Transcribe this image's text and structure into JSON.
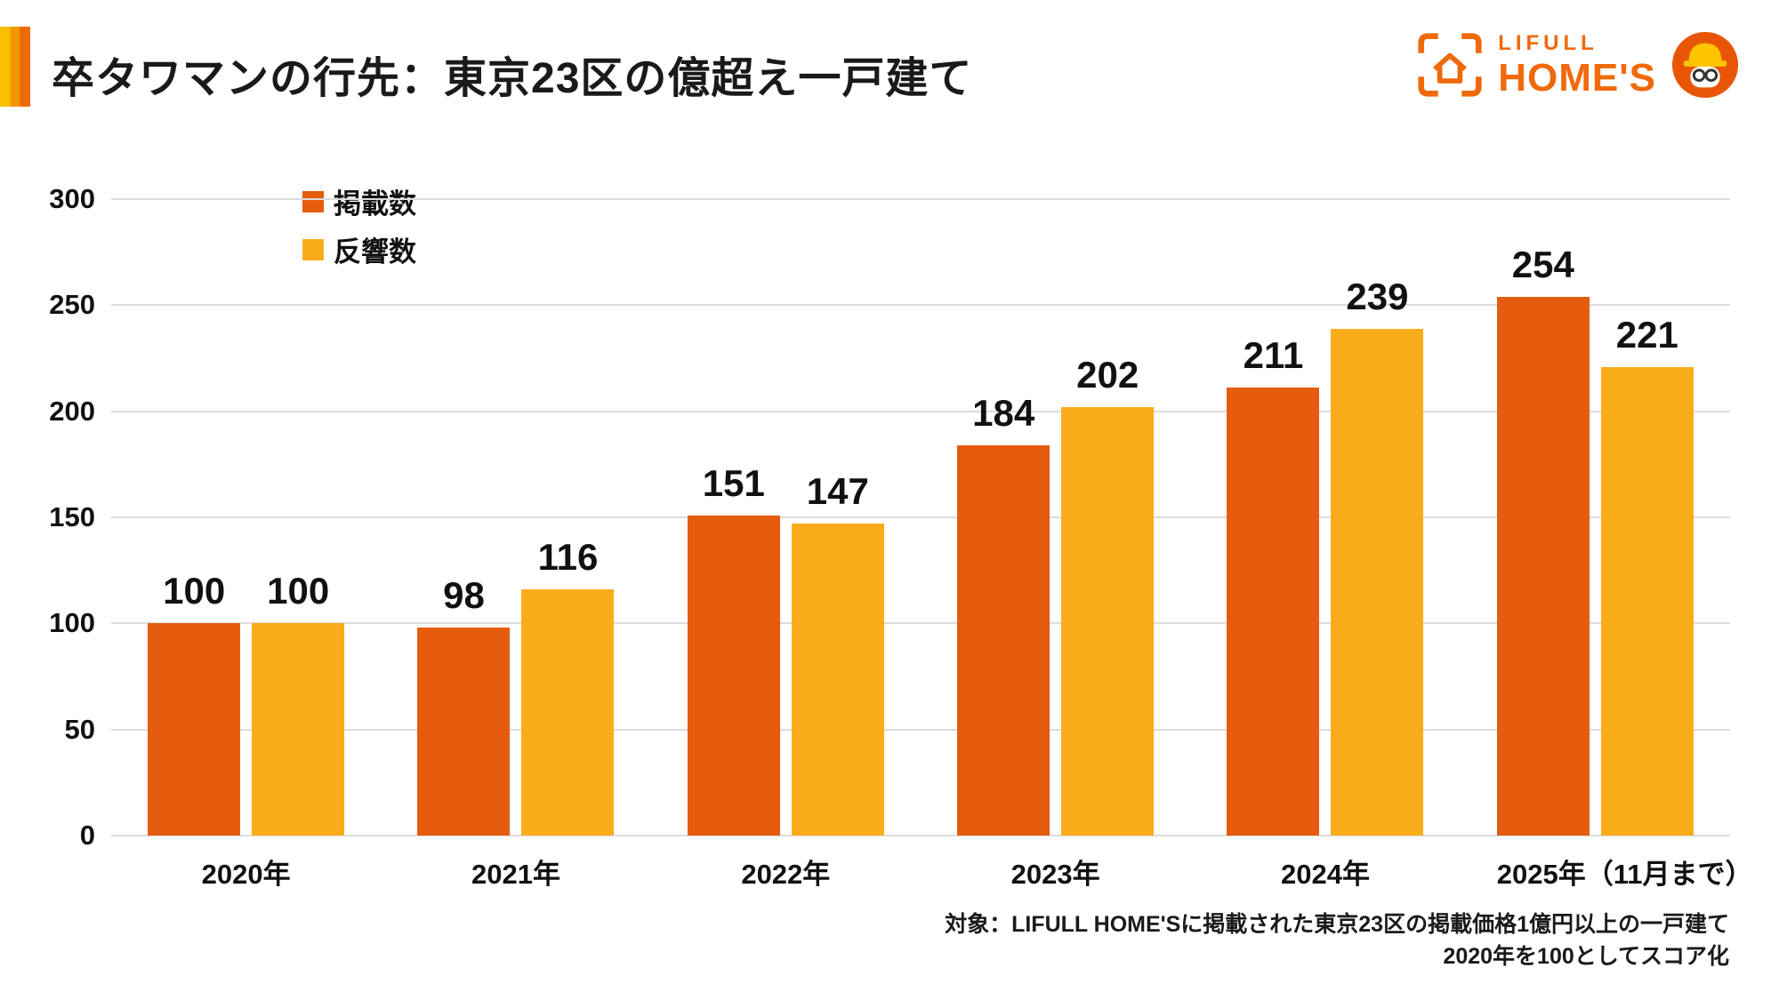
{
  "header": {
    "title": "卒タワマンの行先：東京23区の億超え一戸建て",
    "logo": {
      "brand_top": "LIFULL",
      "brand_bottom": "HOME'S"
    }
  },
  "chart_data": {
    "type": "bar",
    "title": "卒タワマンの行先：東京23区の億超え一戸建て",
    "categories": [
      "2020年",
      "2021年",
      "2022年",
      "2023年",
      "2024年",
      "2025年（11月まで）"
    ],
    "series": [
      {
        "name": "掲載数",
        "color": "#E65C0F",
        "values": [
          100,
          98,
          151,
          184,
          211,
          254
        ]
      },
      {
        "name": "反響数",
        "color": "#FAAD1A",
        "values": [
          100,
          116,
          147,
          202,
          239,
          221
        ]
      }
    ],
    "ylim": [
      0,
      300
    ],
    "ytick_step": 50,
    "grid": true,
    "legend_position": "top-left"
  },
  "footnotes": [
    "対象：LIFULL HOME'Sに掲載された東京23区の掲載価格1億円以上の一戸建て",
    "2020年を100としてスコア化"
  ],
  "colors": {
    "brand_orange": "#F0690A",
    "accent_yellow": "#F9BE00",
    "accent_orange": "#ED6C00",
    "gridline": "#DCDCDC"
  }
}
